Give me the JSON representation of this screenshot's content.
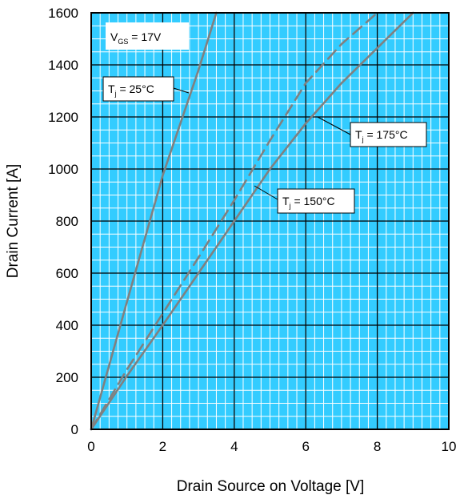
{
  "chart_data": {
    "type": "line",
    "title": "",
    "xlabel": "Drain Source on Voltage [V]",
    "ylabel": "Drain Current [A]",
    "xlim": [
      0,
      10
    ],
    "ylim": [
      0,
      1600
    ],
    "x_major_ticks": [
      0,
      2,
      4,
      6,
      8,
      10
    ],
    "y_major_ticks": [
      0,
      200,
      400,
      600,
      800,
      1000,
      1200,
      1400,
      1600
    ],
    "x_minor_step": 0.25,
    "y_minor_step": 50,
    "grid": true,
    "colors": {
      "background": "#33ccff",
      "minor_grid": "#ffffff",
      "major_grid": "#000000",
      "line": "#808080"
    },
    "condition_label": {
      "main": "V",
      "sub": "GS",
      "rest": " = 17V"
    },
    "series": [
      {
        "label": {
          "main": "T",
          "sub": "j",
          "rest": " = 25°C"
        },
        "style": "solid",
        "points": [
          [
            0,
            0
          ],
          [
            1,
            490
          ],
          [
            2,
            975
          ],
          [
            3,
            1380
          ],
          [
            3.5,
            1600
          ]
        ]
      },
      {
        "label": {
          "main": "T",
          "sub": "j",
          "rest": " = 150°C"
        },
        "style": "dashed",
        "points": [
          [
            0,
            0
          ],
          [
            1,
            230
          ],
          [
            2,
            445
          ],
          [
            3,
            660
          ],
          [
            4,
            880
          ],
          [
            5,
            1110
          ],
          [
            6,
            1330
          ],
          [
            7,
            1480
          ],
          [
            8,
            1600
          ]
        ]
      },
      {
        "label": {
          "main": "T",
          "sub": "j",
          "rest": " = 175°C"
        },
        "style": "solid",
        "points": [
          [
            0,
            0
          ],
          [
            1,
            205
          ],
          [
            2,
            400
          ],
          [
            3,
            600
          ],
          [
            4,
            800
          ],
          [
            5,
            1000
          ],
          [
            6,
            1175
          ],
          [
            7,
            1330
          ],
          [
            8,
            1465
          ],
          [
            9,
            1600
          ]
        ]
      }
    ]
  }
}
